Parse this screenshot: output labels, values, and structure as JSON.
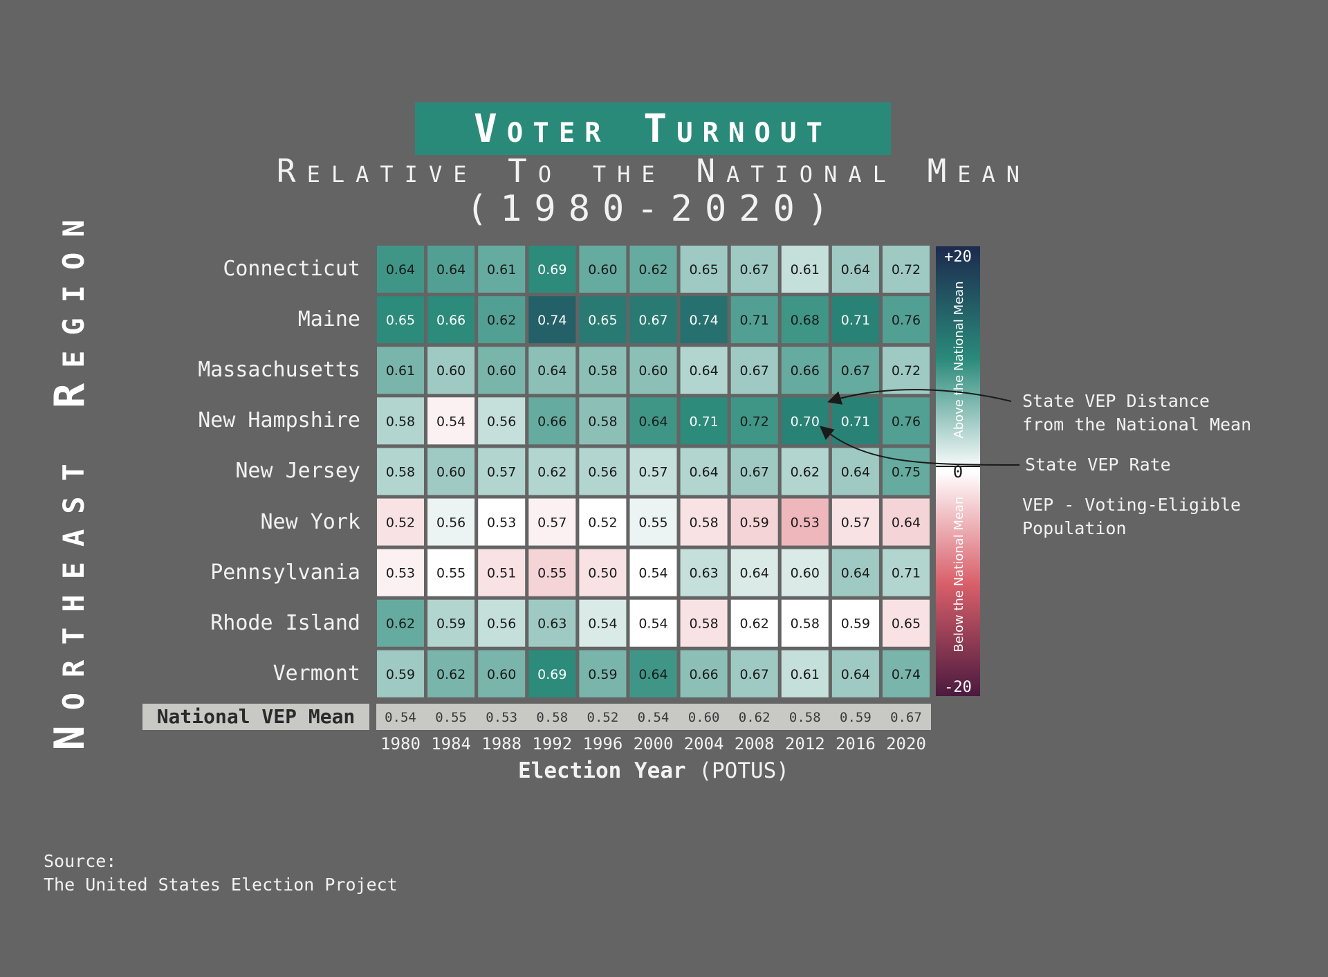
{
  "title": "Voter Turnout",
  "subtitle": "Relative To the National Mean",
  "year_range": "(1980-2020)",
  "region": "Northeast Region",
  "xlabel_bold": "Election Year",
  "xlabel_rest": "(POTUS)",
  "mean_label": "National VEP Mean",
  "colorbar": {
    "top_label": "+20",
    "mid_label": "0",
    "bottom_label": "-20",
    "above_text": "Above the National Mean",
    "below_text": "Below the National Mean"
  },
  "annotations": {
    "distance_line1": "State VEP Distance",
    "distance_line2": "from the National Mean",
    "rate": "State VEP Rate",
    "vep_line1": "VEP - Voting-Eligible",
    "vep_line2": "Population"
  },
  "source_line1": "Source:",
  "source_line2": "The United States Election Project",
  "colors": {
    "background": "#646464",
    "title_box": "#2a8a7a",
    "above_dark": "#1f3a5a",
    "above_mid": "#2a8a7a",
    "neutral": "#ffffff",
    "below_mid": "#d95f6a",
    "below_dark": "#4a1a3e"
  },
  "chart_data": {
    "type": "heatmap",
    "x": [
      "1980",
      "1984",
      "1988",
      "1992",
      "1996",
      "2000",
      "2004",
      "2008",
      "2012",
      "2016",
      "2020"
    ],
    "y": [
      "Connecticut",
      "Maine",
      "Massachusetts",
      "New Hampshire",
      "New Jersey",
      "New York",
      "Pennsylvania",
      "Rhode Island",
      "Vermont"
    ],
    "values": [
      [
        0.64,
        0.64,
        0.61,
        0.69,
        0.6,
        0.62,
        0.65,
        0.67,
        0.61,
        0.64,
        0.72
      ],
      [
        0.65,
        0.66,
        0.62,
        0.74,
        0.65,
        0.67,
        0.74,
        0.71,
        0.68,
        0.71,
        0.76
      ],
      [
        0.61,
        0.6,
        0.6,
        0.64,
        0.58,
        0.6,
        0.64,
        0.67,
        0.66,
        0.67,
        0.72
      ],
      [
        0.58,
        0.54,
        0.56,
        0.66,
        0.58,
        0.64,
        0.71,
        0.72,
        0.7,
        0.71,
        0.76
      ],
      [
        0.58,
        0.6,
        0.57,
        0.62,
        0.56,
        0.57,
        0.64,
        0.67,
        0.62,
        0.64,
        0.75
      ],
      [
        0.52,
        0.56,
        0.53,
        0.57,
        0.52,
        0.55,
        0.58,
        0.59,
        0.53,
        0.57,
        0.64
      ],
      [
        0.53,
        0.55,
        0.51,
        0.55,
        0.5,
        0.54,
        0.63,
        0.64,
        0.6,
        0.64,
        0.71
      ],
      [
        0.62,
        0.59,
        0.56,
        0.63,
        0.54,
        0.54,
        0.58,
        0.62,
        0.58,
        0.59,
        0.65
      ],
      [
        0.59,
        0.62,
        0.6,
        0.69,
        0.59,
        0.64,
        0.66,
        0.67,
        0.61,
        0.64,
        0.74
      ]
    ],
    "national_mean": [
      0.54,
      0.55,
      0.53,
      0.58,
      0.52,
      0.54,
      0.6,
      0.62,
      0.58,
      0.59,
      0.67
    ],
    "color_range": [
      -20,
      20
    ]
  }
}
